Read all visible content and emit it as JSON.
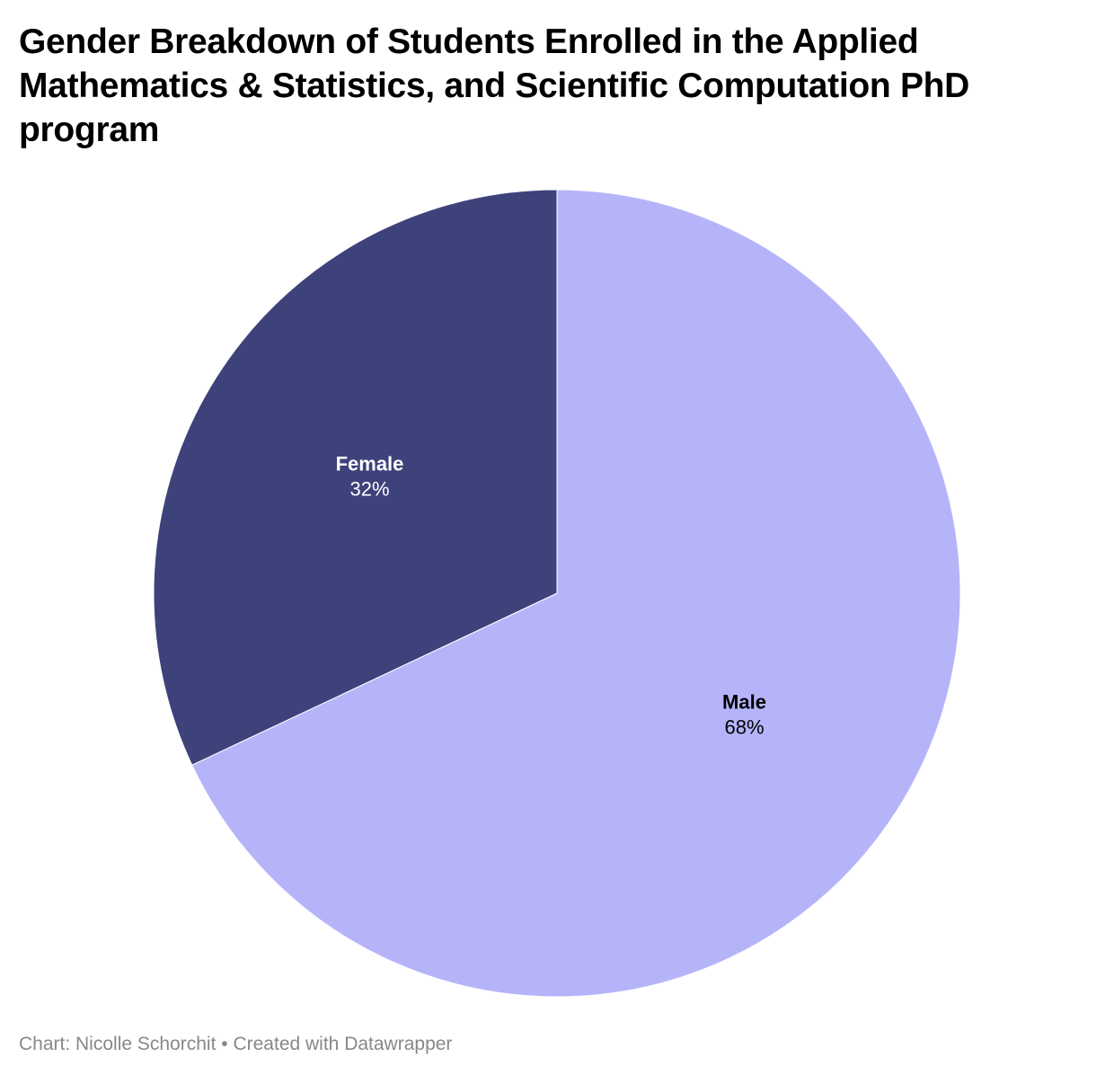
{
  "chart_data": {
    "type": "pie",
    "title": "Gender Breakdown of Students Enrolled in the Applied Mathematics & Statistics, and Scientific Computation PhD program",
    "slices": [
      {
        "label": "Male",
        "value": 68,
        "value_label": "68%",
        "color": "#b6b4f9",
        "text_color": "#000000"
      },
      {
        "label": "Female",
        "value": 32,
        "value_label": "32%",
        "color": "#3e427b",
        "text_color": "#ffffff"
      }
    ],
    "start": "top",
    "direction": "clockwise",
    "legend": "none"
  },
  "footer": {
    "credit": "Chart: Nicolle Schorchit",
    "separator": "•",
    "created_with": "Created with Datawrapper"
  }
}
